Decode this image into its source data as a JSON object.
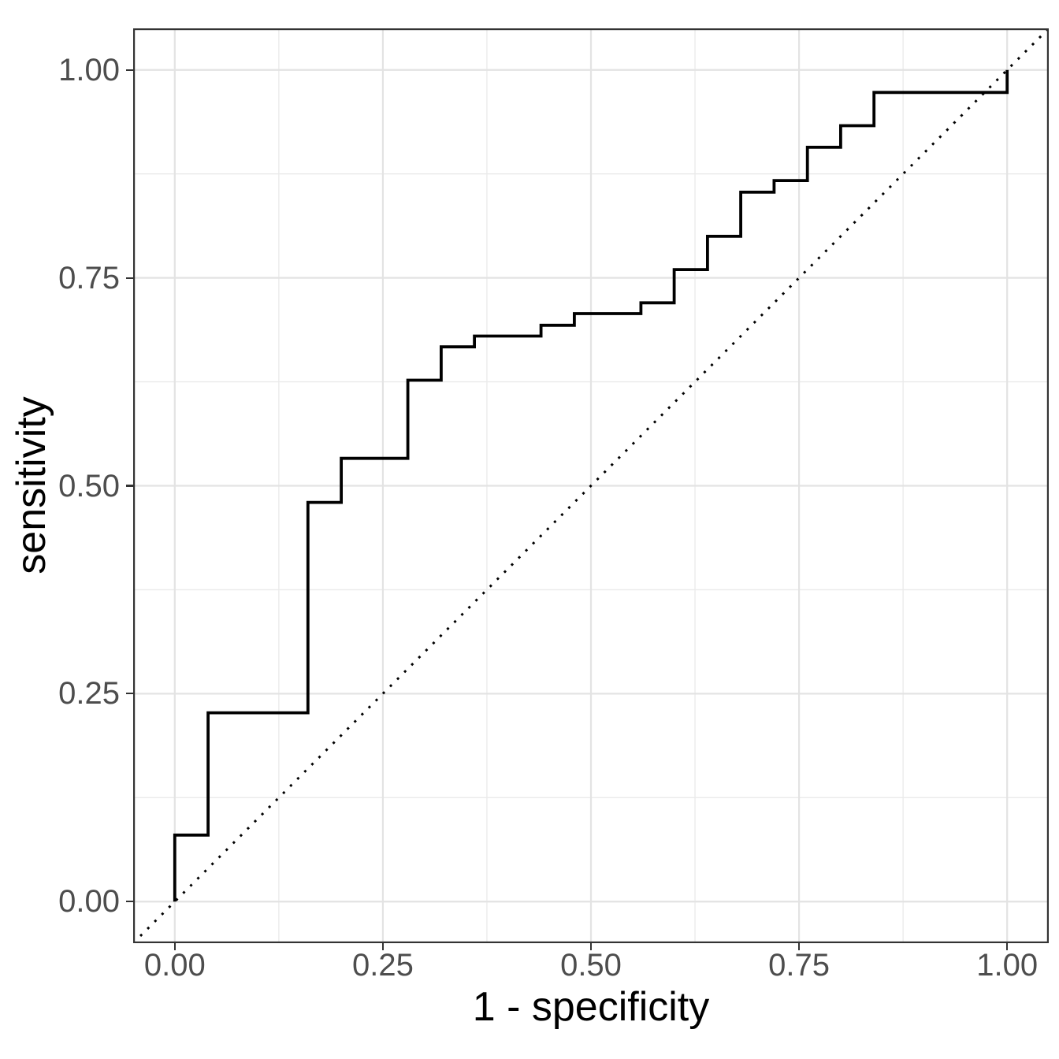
{
  "figure": {
    "background_color": "#FFFFFF",
    "panel_background_color": "#FFFFFF"
  },
  "chart_data": {
    "type": "line",
    "variant": "roc-step-curve",
    "title": "",
    "xlabel": "1 - specificity",
    "ylabel": "sensitivity",
    "xlim": [
      -0.05,
      1.05
    ],
    "ylim": [
      -0.05,
      1.05
    ],
    "grid": "major+minor",
    "legend": "none",
    "x_ticks": {
      "values": [
        0.0,
        0.25,
        0.5,
        0.75,
        1.0
      ],
      "labels": [
        "0.00",
        "0.25",
        "0.50",
        "0.75",
        "1.00"
      ]
    },
    "y_ticks": {
      "values": [
        0.0,
        0.25,
        0.5,
        0.75,
        1.0
      ],
      "labels": [
        "0.00",
        "0.25",
        "0.50",
        "0.75",
        "1.00"
      ]
    },
    "x_minor_ticks": [
      0.125,
      0.375,
      0.625,
      0.875
    ],
    "y_minor_ticks": [
      0.125,
      0.375,
      0.625,
      0.875
    ],
    "series": [
      {
        "name": "ROC curve",
        "kind": "step",
        "color": "#000000",
        "linewidth": 3.8,
        "points": [
          [
            0.0,
            0.0
          ],
          [
            0.0,
            0.08
          ],
          [
            0.04,
            0.08
          ],
          [
            0.04,
            0.227
          ],
          [
            0.16,
            0.227
          ],
          [
            0.16,
            0.48
          ],
          [
            0.2,
            0.48
          ],
          [
            0.2,
            0.533
          ],
          [
            0.28,
            0.533
          ],
          [
            0.28,
            0.627
          ],
          [
            0.32,
            0.627
          ],
          [
            0.32,
            0.667
          ],
          [
            0.36,
            0.667
          ],
          [
            0.36,
            0.68
          ],
          [
            0.44,
            0.68
          ],
          [
            0.44,
            0.693
          ],
          [
            0.48,
            0.693
          ],
          [
            0.48,
            0.707
          ],
          [
            0.56,
            0.707
          ],
          [
            0.56,
            0.72
          ],
          [
            0.6,
            0.72
          ],
          [
            0.6,
            0.76
          ],
          [
            0.64,
            0.76
          ],
          [
            0.64,
            0.8
          ],
          [
            0.68,
            0.8
          ],
          [
            0.68,
            0.853
          ],
          [
            0.72,
            0.853
          ],
          [
            0.72,
            0.867
          ],
          [
            0.76,
            0.867
          ],
          [
            0.76,
            0.907
          ],
          [
            0.8,
            0.907
          ],
          [
            0.8,
            0.933
          ],
          [
            0.84,
            0.933
          ],
          [
            0.84,
            0.973
          ],
          [
            1.0,
            0.973
          ],
          [
            1.0,
            1.0
          ]
        ]
      },
      {
        "name": "chance diagonal",
        "kind": "dotted-line",
        "color": "#000000",
        "linewidth": 3,
        "points": [
          [
            -0.05,
            -0.05
          ],
          [
            1.05,
            1.05
          ]
        ]
      }
    ],
    "colors": {
      "grid_major": "#E3E3E3",
      "grid_minor": "#EAEAEA",
      "panel_border": "#333333",
      "tick_mark": "#333333",
      "tick_label": "#4D4D4D",
      "axis_title": "#000000"
    }
  }
}
